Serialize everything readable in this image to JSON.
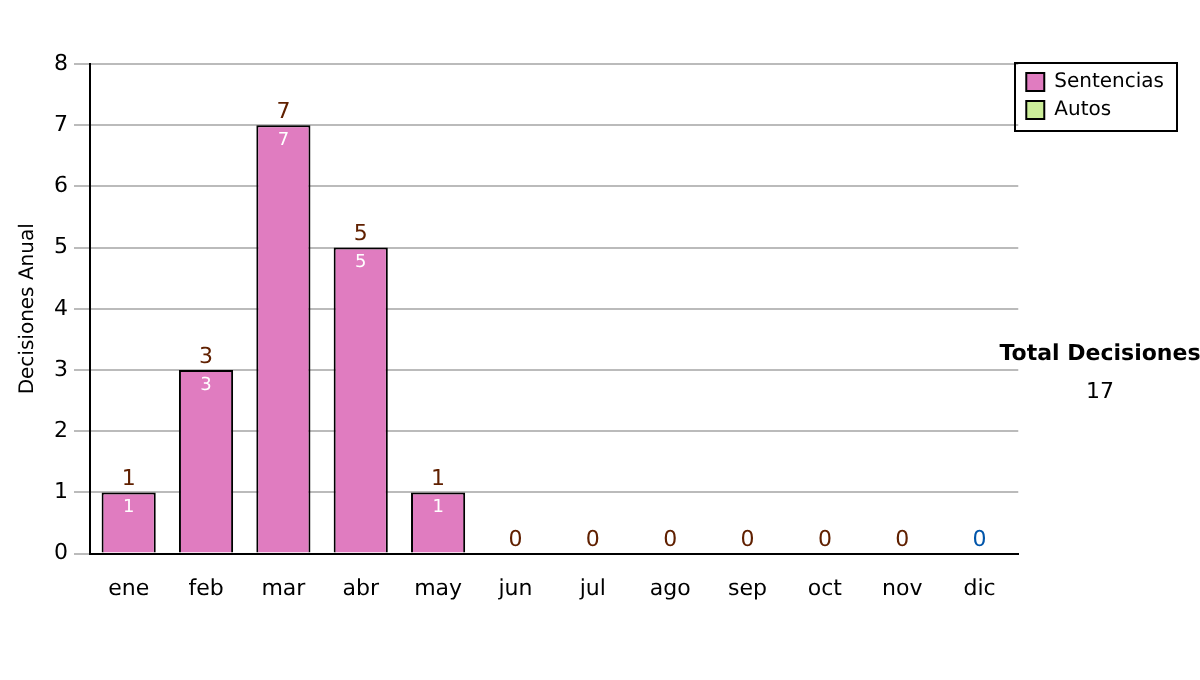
{
  "chart_data": {
    "type": "bar",
    "stacked": true,
    "ylabel": "Decisiones Anual",
    "categories": [
      "ene",
      "feb",
      "mar",
      "abr",
      "may",
      "jun",
      "jul",
      "ago",
      "sep",
      "oct",
      "nov",
      "dic"
    ],
    "series": [
      {
        "name": "Sentencias",
        "color": "#e07cc0",
        "values": [
          1,
          3,
          7,
          5,
          1,
          0,
          0,
          0,
          0,
          0,
          0,
          0
        ],
        "value_labels": [
          "1",
          "3",
          "7",
          "5",
          "1",
          null,
          null,
          null,
          null,
          null,
          null,
          null
        ]
      },
      {
        "name": "Autos",
        "color": "#ccee99",
        "values": [
          0,
          0,
          0,
          0,
          0,
          0,
          0,
          0,
          0,
          0,
          0,
          0
        ]
      }
    ],
    "totals": [
      "1",
      "3",
      "7",
      "5",
      "1",
      "0",
      "0",
      "0",
      "0",
      "0",
      "0",
      "0"
    ],
    "ylim": [
      0,
      8
    ],
    "yticks": [
      0,
      1,
      2,
      3,
      4,
      5,
      6,
      7,
      8
    ],
    "grid": "y",
    "legend": "right",
    "annotations": [
      "Total Decisiones",
      "17"
    ]
  }
}
